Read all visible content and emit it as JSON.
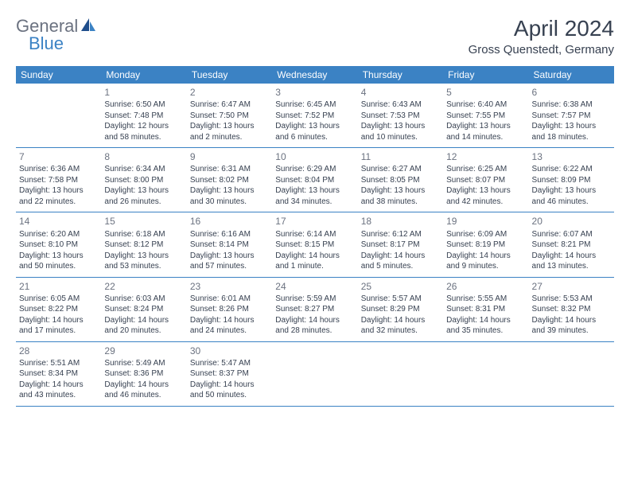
{
  "logo": {
    "text1": "General",
    "text2": "Blue"
  },
  "title": "April 2024",
  "location": "Gross Quenstedt, Germany",
  "colors": {
    "header_bg": "#3b82c4",
    "header_text": "#ffffff",
    "text": "#374151",
    "muted": "#6b7280",
    "border": "#3b82c4"
  },
  "weekdays": [
    "Sunday",
    "Monday",
    "Tuesday",
    "Wednesday",
    "Thursday",
    "Friday",
    "Saturday"
  ],
  "weeks": [
    [
      null,
      {
        "n": "1",
        "sr": "Sunrise: 6:50 AM",
        "ss": "Sunset: 7:48 PM",
        "d1": "Daylight: 12 hours",
        "d2": "and 58 minutes."
      },
      {
        "n": "2",
        "sr": "Sunrise: 6:47 AM",
        "ss": "Sunset: 7:50 PM",
        "d1": "Daylight: 13 hours",
        "d2": "and 2 minutes."
      },
      {
        "n": "3",
        "sr": "Sunrise: 6:45 AM",
        "ss": "Sunset: 7:52 PM",
        "d1": "Daylight: 13 hours",
        "d2": "and 6 minutes."
      },
      {
        "n": "4",
        "sr": "Sunrise: 6:43 AM",
        "ss": "Sunset: 7:53 PM",
        "d1": "Daylight: 13 hours",
        "d2": "and 10 minutes."
      },
      {
        "n": "5",
        "sr": "Sunrise: 6:40 AM",
        "ss": "Sunset: 7:55 PM",
        "d1": "Daylight: 13 hours",
        "d2": "and 14 minutes."
      },
      {
        "n": "6",
        "sr": "Sunrise: 6:38 AM",
        "ss": "Sunset: 7:57 PM",
        "d1": "Daylight: 13 hours",
        "d2": "and 18 minutes."
      }
    ],
    [
      {
        "n": "7",
        "sr": "Sunrise: 6:36 AM",
        "ss": "Sunset: 7:58 PM",
        "d1": "Daylight: 13 hours",
        "d2": "and 22 minutes."
      },
      {
        "n": "8",
        "sr": "Sunrise: 6:34 AM",
        "ss": "Sunset: 8:00 PM",
        "d1": "Daylight: 13 hours",
        "d2": "and 26 minutes."
      },
      {
        "n": "9",
        "sr": "Sunrise: 6:31 AM",
        "ss": "Sunset: 8:02 PM",
        "d1": "Daylight: 13 hours",
        "d2": "and 30 minutes."
      },
      {
        "n": "10",
        "sr": "Sunrise: 6:29 AM",
        "ss": "Sunset: 8:04 PM",
        "d1": "Daylight: 13 hours",
        "d2": "and 34 minutes."
      },
      {
        "n": "11",
        "sr": "Sunrise: 6:27 AM",
        "ss": "Sunset: 8:05 PM",
        "d1": "Daylight: 13 hours",
        "d2": "and 38 minutes."
      },
      {
        "n": "12",
        "sr": "Sunrise: 6:25 AM",
        "ss": "Sunset: 8:07 PM",
        "d1": "Daylight: 13 hours",
        "d2": "and 42 minutes."
      },
      {
        "n": "13",
        "sr": "Sunrise: 6:22 AM",
        "ss": "Sunset: 8:09 PM",
        "d1": "Daylight: 13 hours",
        "d2": "and 46 minutes."
      }
    ],
    [
      {
        "n": "14",
        "sr": "Sunrise: 6:20 AM",
        "ss": "Sunset: 8:10 PM",
        "d1": "Daylight: 13 hours",
        "d2": "and 50 minutes."
      },
      {
        "n": "15",
        "sr": "Sunrise: 6:18 AM",
        "ss": "Sunset: 8:12 PM",
        "d1": "Daylight: 13 hours",
        "d2": "and 53 minutes."
      },
      {
        "n": "16",
        "sr": "Sunrise: 6:16 AM",
        "ss": "Sunset: 8:14 PM",
        "d1": "Daylight: 13 hours",
        "d2": "and 57 minutes."
      },
      {
        "n": "17",
        "sr": "Sunrise: 6:14 AM",
        "ss": "Sunset: 8:15 PM",
        "d1": "Daylight: 14 hours",
        "d2": "and 1 minute."
      },
      {
        "n": "18",
        "sr": "Sunrise: 6:12 AM",
        "ss": "Sunset: 8:17 PM",
        "d1": "Daylight: 14 hours",
        "d2": "and 5 minutes."
      },
      {
        "n": "19",
        "sr": "Sunrise: 6:09 AM",
        "ss": "Sunset: 8:19 PM",
        "d1": "Daylight: 14 hours",
        "d2": "and 9 minutes."
      },
      {
        "n": "20",
        "sr": "Sunrise: 6:07 AM",
        "ss": "Sunset: 8:21 PM",
        "d1": "Daylight: 14 hours",
        "d2": "and 13 minutes."
      }
    ],
    [
      {
        "n": "21",
        "sr": "Sunrise: 6:05 AM",
        "ss": "Sunset: 8:22 PM",
        "d1": "Daylight: 14 hours",
        "d2": "and 17 minutes."
      },
      {
        "n": "22",
        "sr": "Sunrise: 6:03 AM",
        "ss": "Sunset: 8:24 PM",
        "d1": "Daylight: 14 hours",
        "d2": "and 20 minutes."
      },
      {
        "n": "23",
        "sr": "Sunrise: 6:01 AM",
        "ss": "Sunset: 8:26 PM",
        "d1": "Daylight: 14 hours",
        "d2": "and 24 minutes."
      },
      {
        "n": "24",
        "sr": "Sunrise: 5:59 AM",
        "ss": "Sunset: 8:27 PM",
        "d1": "Daylight: 14 hours",
        "d2": "and 28 minutes."
      },
      {
        "n": "25",
        "sr": "Sunrise: 5:57 AM",
        "ss": "Sunset: 8:29 PM",
        "d1": "Daylight: 14 hours",
        "d2": "and 32 minutes."
      },
      {
        "n": "26",
        "sr": "Sunrise: 5:55 AM",
        "ss": "Sunset: 8:31 PM",
        "d1": "Daylight: 14 hours",
        "d2": "and 35 minutes."
      },
      {
        "n": "27",
        "sr": "Sunrise: 5:53 AM",
        "ss": "Sunset: 8:32 PM",
        "d1": "Daylight: 14 hours",
        "d2": "and 39 minutes."
      }
    ],
    [
      {
        "n": "28",
        "sr": "Sunrise: 5:51 AM",
        "ss": "Sunset: 8:34 PM",
        "d1": "Daylight: 14 hours",
        "d2": "and 43 minutes."
      },
      {
        "n": "29",
        "sr": "Sunrise: 5:49 AM",
        "ss": "Sunset: 8:36 PM",
        "d1": "Daylight: 14 hours",
        "d2": "and 46 minutes."
      },
      {
        "n": "30",
        "sr": "Sunrise: 5:47 AM",
        "ss": "Sunset: 8:37 PM",
        "d1": "Daylight: 14 hours",
        "d2": "and 50 minutes."
      },
      null,
      null,
      null,
      null
    ]
  ]
}
